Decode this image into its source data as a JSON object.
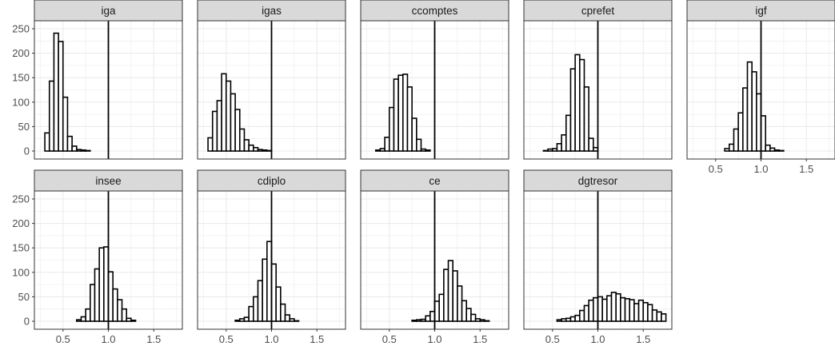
{
  "chart_data": {
    "type": "bar",
    "facet_layout": {
      "columns": 5
    },
    "x_range": [
      0.25,
      1.75
    ],
    "y_range": [
      0,
      250
    ],
    "x_ticks": [
      0.5,
      1.0,
      1.5
    ],
    "x_tick_labels": [
      "0.5",
      "1.0",
      "1.5"
    ],
    "y_ticks": [
      0,
      50,
      100,
      150,
      200,
      250
    ],
    "y_tick_labels": [
      "0",
      "50",
      "100",
      "150",
      "200",
      "250"
    ],
    "bin_start": 0.3,
    "bin_width": 0.05,
    "reference_line_x": 1.0,
    "grid": true,
    "facets": [
      {
        "name": "iga",
        "counts": [
          37,
          143,
          241,
          224,
          110,
          30,
          10,
          3,
          2,
          1,
          0,
          0,
          0,
          0,
          0,
          0,
          0,
          0,
          0,
          0,
          0,
          0,
          0,
          0,
          0,
          0,
          0,
          0,
          0
        ]
      },
      {
        "name": "igas",
        "counts": [
          27,
          81,
          103,
          158,
          143,
          117,
          85,
          45,
          23,
          12,
          7,
          3,
          2,
          1,
          0,
          0,
          0,
          0,
          0,
          0,
          0,
          0,
          0,
          0,
          0,
          0,
          0,
          0,
          0
        ]
      },
      {
        "name": "ccomptes",
        "counts": [
          0,
          2,
          5,
          28,
          89,
          147,
          155,
          157,
          131,
          67,
          24,
          4,
          2,
          0,
          0,
          0,
          0,
          0,
          0,
          0,
          0,
          0,
          0,
          0,
          0,
          0,
          0,
          0,
          0
        ]
      },
      {
        "name": "cprefet",
        "counts": [
          0,
          0,
          1,
          4,
          5,
          15,
          33,
          73,
          168,
          197,
          187,
          131,
          26,
          7,
          0,
          0,
          0,
          0,
          0,
          0,
          0,
          0,
          0,
          0,
          0,
          0,
          0,
          0,
          0
        ]
      },
      {
        "name": "igf",
        "counts": [
          0,
          0,
          0,
          0,
          0,
          0,
          5,
          14,
          45,
          78,
          129,
          182,
          162,
          117,
          72,
          12,
          6,
          2,
          1,
          0,
          0,
          0,
          0,
          0,
          0,
          0,
          0,
          0,
          0
        ]
      },
      {
        "name": "insee",
        "counts": [
          0,
          0,
          0,
          0,
          0,
          0,
          0,
          3,
          9,
          25,
          75,
          107,
          150,
          152,
          101,
          66,
          44,
          25,
          6,
          2,
          0,
          0,
          0,
          0,
          0,
          0,
          0,
          0,
          0
        ]
      },
      {
        "name": "cdiplo",
        "counts": [
          0,
          0,
          0,
          0,
          0,
          0,
          2,
          5,
          8,
          30,
          50,
          83,
          127,
          163,
          117,
          70,
          35,
          13,
          5,
          1,
          0,
          0,
          0,
          0,
          0,
          0,
          0,
          0,
          0
        ]
      },
      {
        "name": "ce",
        "counts": [
          0,
          0,
          0,
          0,
          0,
          0,
          0,
          0,
          0,
          2,
          3,
          4,
          11,
          20,
          41,
          55,
          106,
          124,
          103,
          72,
          42,
          26,
          14,
          5,
          3,
          1,
          0,
          0,
          0
        ]
      },
      {
        "name": "dgtresor",
        "counts": [
          0,
          0,
          0,
          0,
          0,
          3,
          5,
          6,
          9,
          12,
          22,
          32,
          43,
          48,
          50,
          45,
          52,
          59,
          56,
          48,
          46,
          44,
          36,
          43,
          38,
          34,
          23,
          19,
          15
        ]
      }
    ]
  }
}
